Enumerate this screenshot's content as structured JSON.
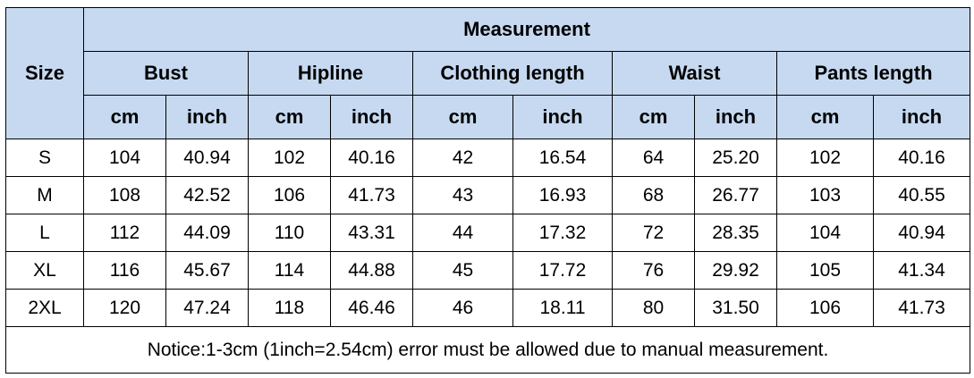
{
  "table": {
    "size_label": "Size",
    "title": "Measurement",
    "groups": [
      "Bust",
      "Hipline",
      "Clothing length",
      "Waist",
      "Pants length"
    ],
    "units": [
      "cm",
      "inch",
      "cm",
      "inch",
      "cm",
      "inch",
      "cm",
      "inch",
      "cm",
      "inch"
    ],
    "rows": [
      [
        "S",
        "104",
        "40.94",
        "102",
        "40.16",
        "42",
        "16.54",
        "64",
        "25.20",
        "102",
        "40.16"
      ],
      [
        "M",
        "108",
        "42.52",
        "106",
        "41.73",
        "43",
        "16.93",
        "68",
        "26.77",
        "103",
        "40.55"
      ],
      [
        "L",
        "112",
        "44.09",
        "110",
        "43.31",
        "44",
        "17.32",
        "72",
        "28.35",
        "104",
        "40.94"
      ],
      [
        "XL",
        "116",
        "45.67",
        "114",
        "44.88",
        "45",
        "17.72",
        "76",
        "29.92",
        "105",
        "41.34"
      ],
      [
        "2XL",
        "120",
        "47.24",
        "118",
        "46.46",
        "46",
        "18.11",
        "80",
        "31.50",
        "106",
        "41.73"
      ]
    ],
    "notice": "Notice:1-3cm (1inch=2.54cm) error must be allowed due to manual measurement."
  }
}
